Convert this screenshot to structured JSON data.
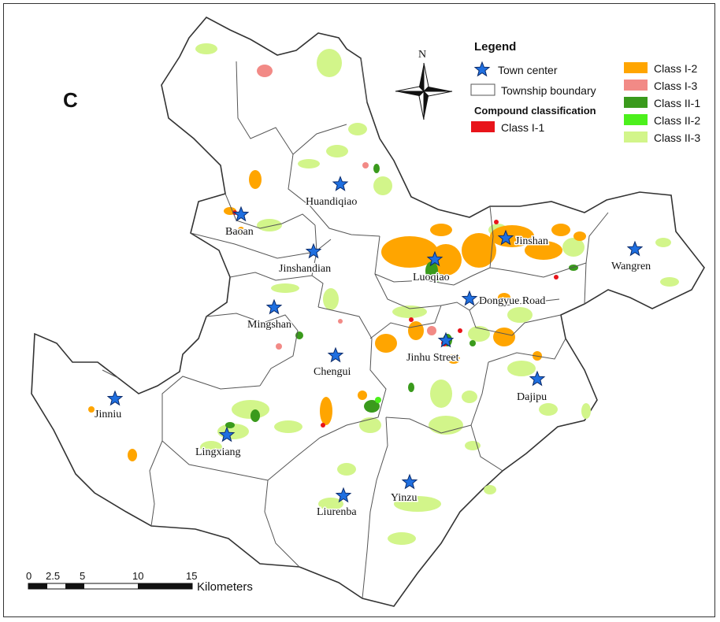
{
  "panel_letter": "C",
  "legend": {
    "title": "Legend",
    "town_center": "Town center",
    "township_boundary": "Township boundary",
    "compound_title": "Compound classification",
    "classes": [
      {
        "label": "Class I-1",
        "color": "#e8141a"
      },
      {
        "label": "Class I-2",
        "color": "#ffa500"
      },
      {
        "label": "Class I-3",
        "color": "#f28a86"
      },
      {
        "label": "Class II-1",
        "color": "#3a9a1c"
      },
      {
        "label": "Class II-2",
        "color": "#4cf01c"
      },
      {
        "label": "Class II-3",
        "color": "#d2f58a"
      }
    ]
  },
  "north_arrow": {
    "label": "N"
  },
  "scale_bar": {
    "ticks": [
      "0",
      "2.5",
      "5",
      "10",
      "15"
    ],
    "unit": "Kilometers"
  },
  "towns": [
    {
      "name": "Huandiqiao"
    },
    {
      "name": "Baoan"
    },
    {
      "name": "Jinshandian"
    },
    {
      "name": "Mingshan"
    },
    {
      "name": "Chengui"
    },
    {
      "name": "Luoqiao"
    },
    {
      "name": "Jinshan"
    },
    {
      "name": "Wangren"
    },
    {
      "name": "Dongyue Road"
    },
    {
      "name": "Jinhu Street"
    },
    {
      "name": "Dajipu"
    },
    {
      "name": "Jinniu"
    },
    {
      "name": "Lingxiang"
    },
    {
      "name": "Liurenba"
    },
    {
      "name": "Yinzu"
    }
  ]
}
